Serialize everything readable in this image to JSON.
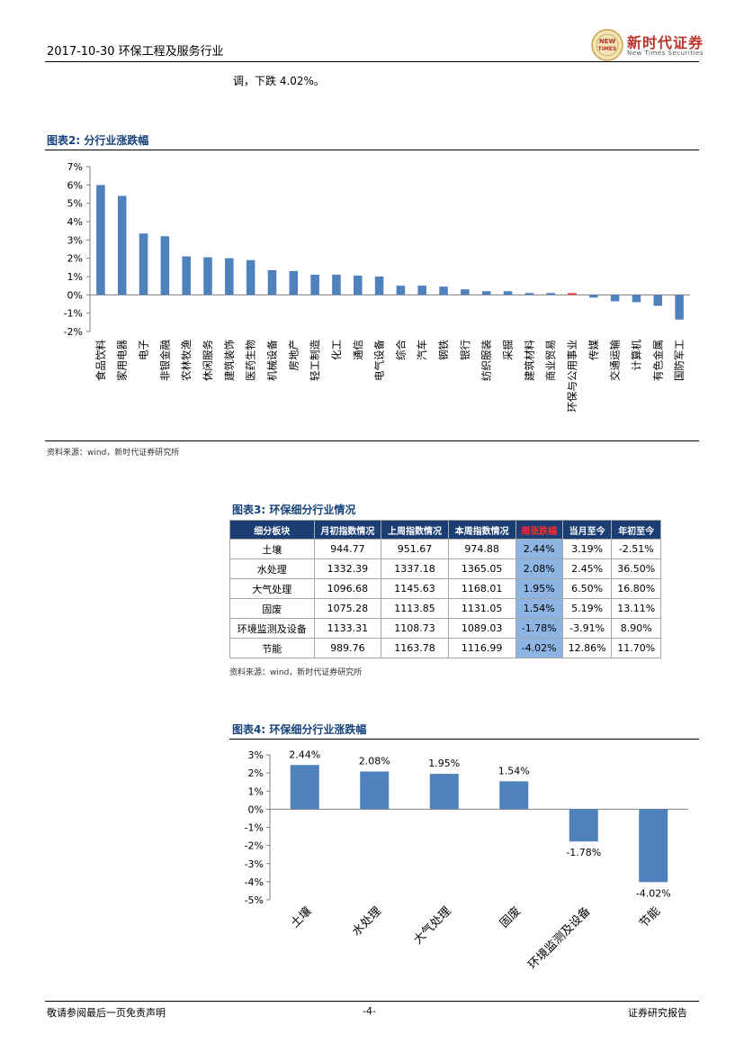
{
  "header": {
    "date_industry": "2017-10-30 环保工程及服务行业",
    "logo_cn": "新时代证券",
    "logo_en": "New Times Securities",
    "logo_badge": "NEW TIMES"
  },
  "intro_text": "调，下跌 4.02%。",
  "figure2": {
    "title": "图表2:  分行业涨跌幅",
    "source": "资料来源：wind，新时代证券研究所",
    "colors": {
      "bar": "#4f81bd",
      "highlight": "#e6463c"
    }
  },
  "figure3": {
    "title": "图表3:  环保细分行业情况",
    "headers": [
      "细分板块",
      "月初指数情况",
      "上周指数情况",
      "本周指数情况",
      "周涨跌幅",
      "当月至今",
      "年初至今"
    ],
    "rows": [
      [
        "土壤",
        "944.77",
        "951.67",
        "974.88",
        "2.44%",
        "3.19%",
        "-2.51%"
      ],
      [
        "水处理",
        "1332.39",
        "1337.18",
        "1365.05",
        "2.08%",
        "2.45%",
        "36.50%"
      ],
      [
        "大气处理",
        "1096.68",
        "1145.63",
        "1168.01",
        "1.95%",
        "6.50%",
        "16.80%"
      ],
      [
        "固废",
        "1075.28",
        "1113.85",
        "1131.05",
        "1.54%",
        "5.19%",
        "13.11%"
      ],
      [
        "环境监测及设备",
        "1133.31",
        "1108.73",
        "1089.03",
        "-1.78%",
        "-3.91%",
        "8.90%"
      ],
      [
        "节能",
        "989.76",
        "1163.78",
        "1116.99",
        "-4.02%",
        "12.86%",
        "11.70%"
      ]
    ],
    "source": "资料来源：wind，新时代证券研究所",
    "colors": {
      "header_bg": "#1c3f73",
      "highlight_col": "#8eb4e3",
      "highlight_header_text": "#ff2a2a"
    }
  },
  "figure4": {
    "title": "图表4:  环保细分行业涨跌幅"
  },
  "footer": {
    "left": "敬请参阅最后一页免责声明",
    "center": "-4-",
    "right": "证券研究报告"
  },
  "chart_data": [
    {
      "type": "bar",
      "categories": [
        "食品饮料",
        "家用电器",
        "电子",
        "非银金融",
        "农林牧渔",
        "休闲服务",
        "建筑装饰",
        "医药生物",
        "机械设备",
        "房地产",
        "轻工制造",
        "化工",
        "通信",
        "电气设备",
        "综合",
        "汽车",
        "钢铁",
        "银行",
        "纺织服装",
        "采掘",
        "建筑材料",
        "商业贸易",
        "环保与公用事业",
        "传媒",
        "交通运输",
        "计算机",
        "有色金属",
        "国防军工"
      ],
      "values": [
        6.0,
        5.4,
        3.35,
        3.2,
        2.1,
        2.05,
        2.0,
        1.9,
        1.35,
        1.3,
        1.1,
        1.1,
        1.05,
        1.0,
        0.5,
        0.5,
        0.45,
        0.3,
        0.2,
        0.2,
        0.1,
        0.1,
        0.1,
        -0.15,
        -0.35,
        -0.4,
        -0.6,
        -1.35
      ],
      "highlight_category": "环保与公用事业",
      "yticks": [
        "7%",
        "6%",
        "5%",
        "4%",
        "3%",
        "2%",
        "1%",
        "0%",
        "-1%",
        "-2%"
      ],
      "ylim": [
        -2,
        7
      ],
      "grid": false
    },
    {
      "type": "bar",
      "categories": [
        "土壤",
        "水处理",
        "大气处理",
        "固废",
        "环境监测及设备",
        "节能"
      ],
      "values": [
        2.44,
        2.08,
        1.95,
        1.54,
        -1.78,
        -4.02
      ],
      "data_labels": [
        "2.44%",
        "2.08%",
        "1.95%",
        "1.54%",
        "-1.78%",
        "-4.02%"
      ],
      "yticks": [
        "3%",
        "2%",
        "1%",
        "0%",
        "-1%",
        "-2%",
        "-3%",
        "-4%",
        "-5%"
      ],
      "ylim": [
        -5,
        3
      ],
      "grid": false
    }
  ]
}
